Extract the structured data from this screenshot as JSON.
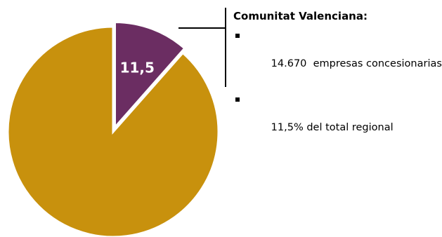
{
  "chart_data": {
    "type": "pie",
    "slices": [
      {
        "value": 11.5,
        "label": "11,5",
        "color": "#6b2d62",
        "exploded": true
      },
      {
        "value": 88.5,
        "label": "",
        "color": "#c8910d",
        "exploded": false
      }
    ],
    "title": ""
  },
  "callout": {
    "title": "Comunitat Valenciana:",
    "items": [
      "14.670  empresas concesionarias",
      "11,5% del total regional"
    ]
  }
}
